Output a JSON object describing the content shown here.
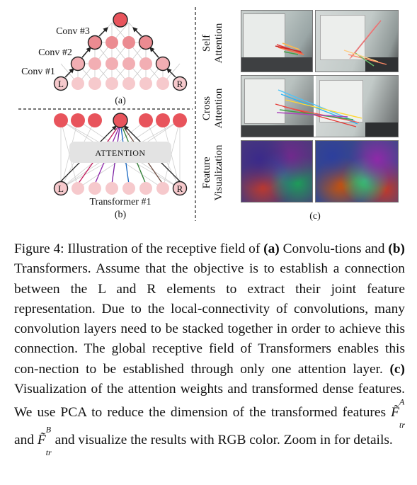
{
  "panel_a": {
    "conv1": "Conv #1",
    "conv2": "Conv #2",
    "conv3": "Conv #3",
    "node_left": "L",
    "node_right": "R",
    "label": "(a)"
  },
  "panel_b": {
    "attention": "ATTENTION",
    "transformer": "Transformer #1",
    "node_left": "L",
    "node_right": "R",
    "label": "(b)"
  },
  "panel_c": {
    "row1_label_line1": "Self",
    "row1_label_line2": "Attention",
    "row2_label_line1": "Cross",
    "row2_label_line2": "Attention",
    "row3_label_line1": "Feature",
    "row3_label_line2": "Visualization",
    "label": "(c)"
  },
  "caption": {
    "prefix": "Figure 4: Illustration of the receptive field of ",
    "a_marker": "(a)",
    "part1": " Convolu-tions and ",
    "b_marker": "(b)",
    "part2": " Transformers. Assume that the objective is to establish a connection between the L and R elements to extract their joint feature representation. Due to the local-connectivity of convolutions, many convolution layers need to be stacked together in order to achieve this connection. The global receptive field of Transformers enables this con-nection to be established through only one attention layer. ",
    "c_marker": "(c)",
    "part3": " Visualization of the attention weights and transformed dense features. We use PCA to reduce the dimension of the transformed features ",
    "feat_a_base": "F",
    "feat_a_sup": "A",
    "feat_a_sub": "tr",
    "and_word": " and ",
    "feat_b_base": "F",
    "feat_b_sup": "B",
    "feat_b_sub": "tr",
    "part4": " and visualize the results with RGB color. Zoom in for details."
  },
  "colors": {
    "node_dark": "#e8545c",
    "node_mid": "#eb8b91",
    "node_light": "#f6c9cc",
    "attention_box": "#e3e3e3"
  }
}
